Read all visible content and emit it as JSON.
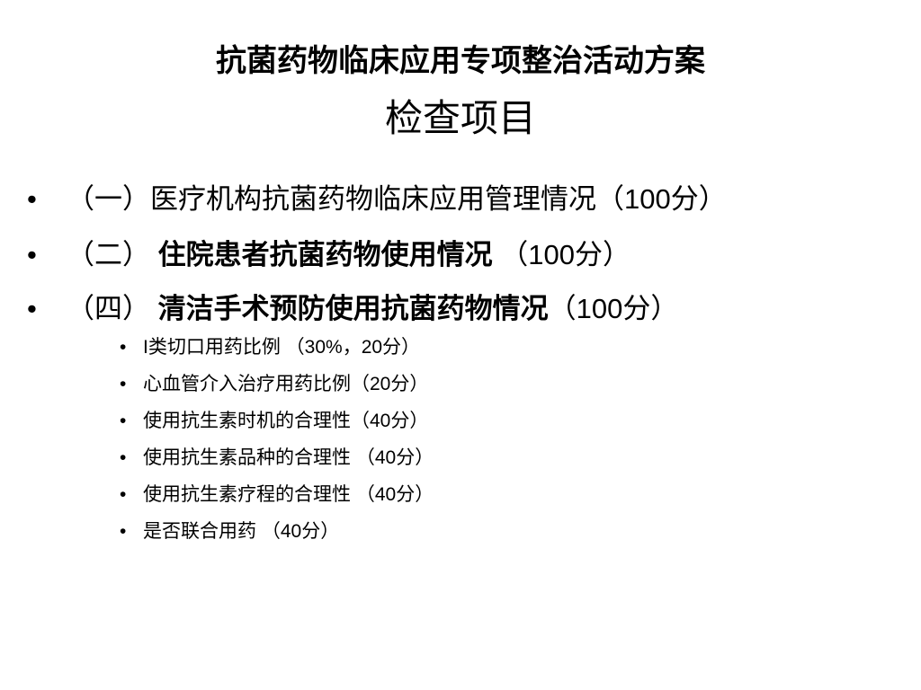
{
  "title": {
    "line1": "抗菌药物临床应用专项整治活动方案",
    "line2": "检查项目"
  },
  "bullets": [
    {
      "parts": [
        "（一）医疗机构抗菌药物临床应用管理情况（100分）",
        "",
        ""
      ]
    },
    {
      "parts": [
        "（二） ",
        "住院患者抗菌药物使用情况",
        " （100分）"
      ]
    },
    {
      "parts": [
        "（四）  ",
        "清洁手术预防使用抗菌药物情况",
        "（100分）"
      ]
    }
  ],
  "sub_bullets": [
    "I类切口用药比例  （30%，20分）",
    "心血管介入治疗用药比例（20分）",
    "使用抗生素时机的合理性（40分）",
    "使用抗生素品种的合理性 （40分）",
    "使用抗生素疗程的合理性 （40分）",
    "是否联合用药 （40分）"
  ],
  "bullet_glyph": "•"
}
